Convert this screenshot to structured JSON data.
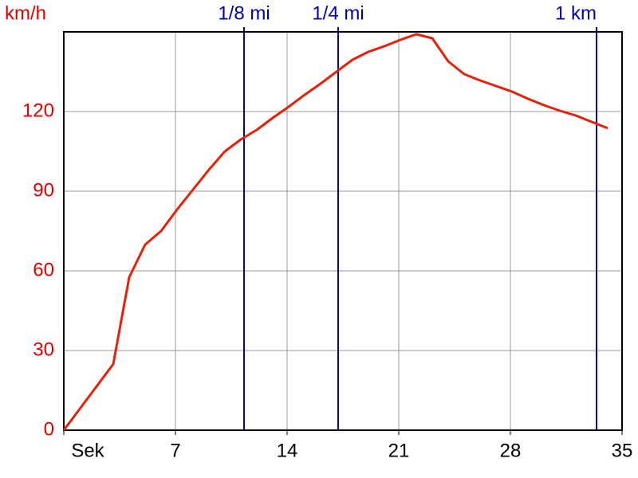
{
  "chart_data": {
    "type": "line",
    "y_label": "km/h",
    "x": [
      0,
      3.1,
      4.1,
      5.1,
      6.1,
      7.1,
      8.1,
      9.1,
      10.1,
      11.1,
      12.1,
      13.1,
      14.1,
      15.1,
      16.1,
      17.1,
      18.1,
      19.1,
      20.1,
      21.1,
      22.1,
      23.1,
      24.1,
      25.1,
      26.1,
      27.1,
      28.1,
      29.1,
      30.1,
      31.1,
      32.1,
      33.1,
      34.1
    ],
    "series": [
      {
        "color": "#e8200a",
        "values": [
          0,
          24.9,
          57.6,
          69.9,
          75,
          83.1,
          90.6,
          98.1,
          105,
          109.5,
          113.1,
          117.6,
          121.8,
          126.3,
          130.5,
          135,
          139.5,
          142.5,
          144.6,
          147,
          149.1,
          147.6,
          138.9,
          134.1,
          131.7,
          129.6,
          127.5,
          124.8,
          122.4,
          120.3,
          118.5,
          116.1,
          113.7
        ]
      }
    ],
    "markers": [
      {
        "label": "1/8 mi",
        "x": 11.3
      },
      {
        "label": "1/4 mi",
        "x": 17.2
      },
      {
        "label": "1 km",
        "x": 33.4
      }
    ],
    "marker_color": "#0000b0",
    "xlim": [
      0,
      35
    ],
    "xticks": [
      {
        "value": 0,
        "label": "Sek"
      },
      7,
      14,
      21,
      28,
      35
    ],
    "ylim": [
      0,
      150
    ],
    "yticks": [
      0,
      30,
      60,
      90,
      120
    ],
    "grid": true,
    "y_tick_color": "#e00000"
  }
}
